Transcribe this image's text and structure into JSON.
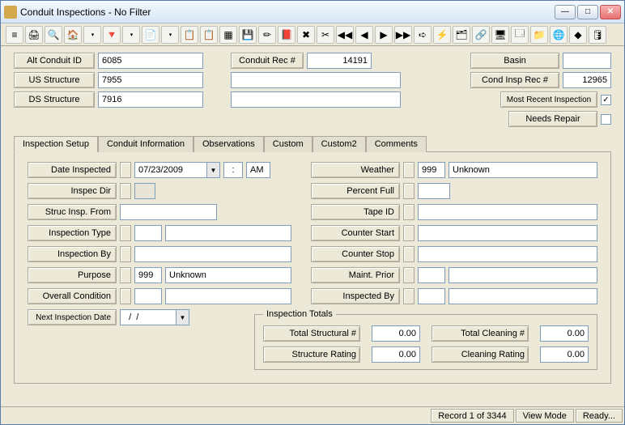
{
  "window": {
    "title": "Conduit Inspections - No Filter"
  },
  "toolbar_icons": [
    "≡",
    "🖨",
    "🔍",
    "🏠",
    "▾",
    "🔻",
    "▾",
    "📄",
    "▾",
    "📋",
    "📋",
    "▦",
    "💾",
    "✏",
    "📕",
    "✖",
    "✂",
    "◀◀",
    "◀",
    "▶",
    "▶▶",
    "➪",
    "⚡",
    "🗂",
    "🔗",
    "🖥",
    "🗔",
    "📁",
    "🌐",
    "◆",
    "🛢"
  ],
  "header": {
    "alt_conduit_id_label": "Alt Conduit ID",
    "alt_conduit_id": "6085",
    "conduit_rec_label": "Conduit Rec #",
    "conduit_rec": "14191",
    "basin_label": "Basin",
    "basin": "",
    "us_structure_label": "US Structure",
    "us_structure": "7955",
    "cond_insp_rec_label": "Cond Insp Rec #",
    "cond_insp_rec": "12965",
    "ds_structure_label": "DS Structure",
    "ds_structure": "7916",
    "most_recent_label": "Most Recent Inspection",
    "most_recent_checked": "✓",
    "needs_repair_label": "Needs Repair"
  },
  "tabs": [
    "Inspection Setup",
    "Conduit Information",
    "Observations",
    "Custom",
    "Custom2",
    "Comments"
  ],
  "setup": {
    "date_inspected_label": "Date Inspected",
    "date_inspected": "07/23/2009",
    "time": ":",
    "ampm": "AM",
    "inspec_dir_label": "Inspec Dir",
    "struc_insp_from_label": "Struc Insp. From",
    "inspection_type_label": "Inspection Type",
    "inspection_by_label": "Inspection By",
    "purpose_label": "Purpose",
    "purpose_code": "999",
    "purpose_text": "Unknown",
    "overall_condition_label": "Overall Condition",
    "next_inspection_label": "Next Inspection Date",
    "next_inspection": "  /  /",
    "weather_label": "Weather",
    "weather_code": "999",
    "weather_text": "Unknown",
    "percent_full_label": "Percent Full",
    "tape_id_label": "Tape ID",
    "counter_start_label": "Counter Start",
    "counter_stop_label": "Counter Stop",
    "maint_prior_label": "Maint. Prior",
    "inspected_by_label": "Inspected By"
  },
  "totals": {
    "legend": "Inspection Totals",
    "total_structural_label": "Total Structural #",
    "total_structural": "0.00",
    "total_cleaning_label": "Total Cleaning #",
    "total_cleaning": "0.00",
    "structure_rating_label": "Structure Rating",
    "structure_rating": "0.00",
    "cleaning_rating_label": "Cleaning Rating",
    "cleaning_rating": "0.00"
  },
  "status": {
    "record": "Record 1 of 3344",
    "mode": "View Mode",
    "ready": "Ready..."
  }
}
